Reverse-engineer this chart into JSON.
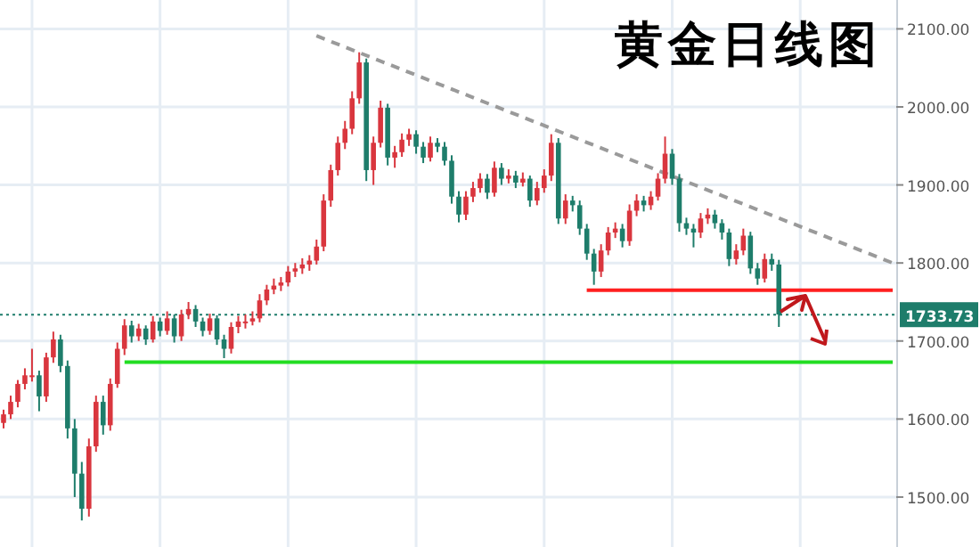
{
  "chart_data": {
    "type": "candlestick",
    "title": "黄金日线图",
    "categories": [
      null,
      null,
      null,
      null,
      null,
      null,
      null,
      null,
      null,
      null,
      null,
      null,
      null,
      null,
      null,
      null,
      null,
      null,
      null,
      null,
      null,
      null,
      null,
      null,
      null,
      null,
      null,
      null,
      null,
      null,
      null,
      null,
      null,
      null,
      null,
      null,
      null,
      null,
      null,
      null,
      null,
      null,
      null,
      null,
      null,
      null,
      null,
      null,
      null,
      null,
      null,
      null,
      null,
      null,
      null,
      null,
      null,
      null,
      null,
      null,
      null,
      null,
      null,
      null,
      null,
      null,
      null,
      null,
      null,
      null,
      null,
      null,
      null,
      null,
      null,
      null,
      null,
      null,
      null,
      null,
      null,
      null,
      null,
      null,
      null,
      null,
      null,
      null,
      null,
      null,
      null,
      null,
      null,
      null,
      null,
      null,
      null,
      null,
      null,
      null,
      null,
      null,
      null,
      null,
      null,
      null,
      null,
      null,
      null,
      null,
      null,
      null,
      null,
      null,
      null,
      null,
      null,
      null,
      null,
      null,
      null,
      null,
      null,
      null,
      null,
      null
    ],
    "ohlc": [
      [
        1595,
        1612,
        1588,
        1606
      ],
      [
        1606,
        1630,
        1600,
        1622
      ],
      [
        1622,
        1650,
        1615,
        1645
      ],
      [
        1645,
        1665,
        1638,
        1656
      ],
      [
        1656,
        1690,
        1648,
        1656
      ],
      [
        1656,
        1662,
        1610,
        1629
      ],
      [
        1629,
        1685,
        1622,
        1679
      ],
      [
        1679,
        1712,
        1672,
        1702
      ],
      [
        1702,
        1708,
        1660,
        1668
      ],
      [
        1668,
        1675,
        1575,
        1588
      ],
      [
        1588,
        1600,
        1500,
        1530
      ],
      [
        1530,
        1545,
        1470,
        1485
      ],
      [
        1485,
        1575,
        1475,
        1565
      ],
      [
        1565,
        1630,
        1558,
        1622
      ],
      [
        1622,
        1630,
        1580,
        1592
      ],
      [
        1592,
        1652,
        1585,
        1645
      ],
      [
        1645,
        1698,
        1640,
        1690
      ],
      [
        1690,
        1728,
        1682,
        1720
      ],
      [
        1720,
        1726,
        1698,
        1706
      ],
      [
        1706,
        1722,
        1700,
        1716
      ],
      [
        1716,
        1720,
        1695,
        1702
      ],
      [
        1702,
        1732,
        1698,
        1725
      ],
      [
        1725,
        1730,
        1706,
        1713
      ],
      [
        1713,
        1738,
        1708,
        1729
      ],
      [
        1729,
        1734,
        1698,
        1706
      ],
      [
        1706,
        1740,
        1700,
        1734
      ],
      [
        1734,
        1750,
        1728,
        1741
      ],
      [
        1741,
        1746,
        1718,
        1725
      ],
      [
        1725,
        1730,
        1706,
        1713
      ],
      [
        1713,
        1735,
        1708,
        1729
      ],
      [
        1729,
        1733,
        1695,
        1702
      ],
      [
        1702,
        1708,
        1678,
        1690
      ],
      [
        1690,
        1724,
        1684,
        1718
      ],
      [
        1718,
        1732,
        1710,
        1725
      ],
      [
        1725,
        1734,
        1716,
        1725
      ],
      [
        1725,
        1738,
        1720,
        1729
      ],
      [
        1729,
        1760,
        1724,
        1752
      ],
      [
        1752,
        1772,
        1746,
        1766
      ],
      [
        1766,
        1780,
        1760,
        1771
      ],
      [
        1771,
        1782,
        1764,
        1775
      ],
      [
        1775,
        1796,
        1770,
        1789
      ],
      [
        1789,
        1800,
        1782,
        1793
      ],
      [
        1793,
        1806,
        1786,
        1798
      ],
      [
        1798,
        1810,
        1790,
        1803
      ],
      [
        1803,
        1830,
        1798,
        1821
      ],
      [
        1821,
        1888,
        1815,
        1880
      ],
      [
        1880,
        1926,
        1872,
        1919
      ],
      [
        1919,
        1962,
        1912,
        1954
      ],
      [
        1954,
        1982,
        1946,
        1972
      ],
      [
        1972,
        2020,
        1965,
        2011
      ],
      [
        2011,
        2070,
        2004,
        2057
      ],
      [
        2057,
        2062,
        1905,
        1919
      ],
      [
        1919,
        1962,
        1900,
        1954
      ],
      [
        1954,
        2008,
        1948,
        1999
      ],
      [
        1999,
        2004,
        1925,
        1935
      ],
      [
        1935,
        1950,
        1922,
        1942
      ],
      [
        1942,
        1966,
        1936,
        1958
      ],
      [
        1958,
        1972,
        1950,
        1965
      ],
      [
        1965,
        1970,
        1940,
        1949
      ],
      [
        1949,
        1955,
        1928,
        1935
      ],
      [
        1935,
        1962,
        1930,
        1954
      ],
      [
        1954,
        1960,
        1942,
        1949
      ],
      [
        1949,
        1955,
        1925,
        1931
      ],
      [
        1931,
        1938,
        1876,
        1885
      ],
      [
        1885,
        1892,
        1852,
        1862
      ],
      [
        1862,
        1892,
        1855,
        1885
      ],
      [
        1885,
        1904,
        1878,
        1896
      ],
      [
        1896,
        1915,
        1890,
        1908
      ],
      [
        1908,
        1914,
        1882,
        1890
      ],
      [
        1890,
        1930,
        1885,
        1922
      ],
      [
        1922,
        1928,
        1900,
        1908
      ],
      [
        1908,
        1920,
        1902,
        1912
      ],
      [
        1912,
        1918,
        1896,
        1903
      ],
      [
        1903,
        1916,
        1898,
        1908
      ],
      [
        1908,
        1912,
        1872,
        1880
      ],
      [
        1880,
        1904,
        1874,
        1896
      ],
      [
        1896,
        1920,
        1890,
        1912
      ],
      [
        1912,
        1965,
        1905,
        1954
      ],
      [
        1954,
        1960,
        1850,
        1857
      ],
      [
        1857,
        1888,
        1850,
        1880
      ],
      [
        1880,
        1886,
        1866,
        1874
      ],
      [
        1874,
        1880,
        1836,
        1844
      ],
      [
        1844,
        1850,
        1804,
        1812
      ],
      [
        1812,
        1818,
        1772,
        1789
      ],
      [
        1789,
        1824,
        1782,
        1816
      ],
      [
        1816,
        1846,
        1810,
        1839
      ],
      [
        1839,
        1852,
        1832,
        1844
      ],
      [
        1844,
        1850,
        1820,
        1828
      ],
      [
        1828,
        1875,
        1822,
        1867
      ],
      [
        1867,
        1888,
        1860,
        1880
      ],
      [
        1880,
        1886,
        1866,
        1874
      ],
      [
        1874,
        1892,
        1868,
        1885
      ],
      [
        1885,
        1915,
        1880,
        1908
      ],
      [
        1908,
        1962,
        1902,
        1940
      ],
      [
        1940,
        1946,
        1900,
        1908
      ],
      [
        1908,
        1914,
        1840,
        1851
      ],
      [
        1851,
        1858,
        1836,
        1844
      ],
      [
        1844,
        1850,
        1820,
        1839
      ],
      [
        1839,
        1864,
        1832,
        1857
      ],
      [
        1857,
        1870,
        1850,
        1862
      ],
      [
        1862,
        1868,
        1844,
        1851
      ],
      [
        1851,
        1856,
        1830,
        1839
      ],
      [
        1839,
        1844,
        1796,
        1805
      ],
      [
        1805,
        1824,
        1798,
        1816
      ],
      [
        1816,
        1844,
        1810,
        1835
      ],
      [
        1835,
        1840,
        1786,
        1793
      ],
      [
        1793,
        1800,
        1772,
        1780
      ],
      [
        1780,
        1812,
        1775,
        1805
      ],
      [
        1805,
        1812,
        1790,
        1798
      ],
      [
        1798,
        1804,
        1718,
        1734
      ],
      null,
      null,
      null,
      null,
      null,
      null,
      null,
      null,
      null,
      null,
      null,
      null,
      null,
      null,
      null,
      null
    ],
    "colors": [
      "#d9363e",
      "#d9363e",
      "#d9363e",
      "#d9363e",
      "#d9363e",
      "#1e7d6b",
      "#d9363e",
      "#d9363e",
      "#1e7d6b",
      "#1e7d6b",
      "#1e7d6b",
      "#1e7d6b",
      "#d9363e",
      "#d9363e",
      "#1e7d6b",
      "#d9363e",
      "#d9363e",
      "#d9363e",
      "#1e7d6b",
      "#d9363e",
      "#1e7d6b",
      "#d9363e",
      "#1e7d6b",
      "#d9363e",
      "#1e7d6b",
      "#d9363e",
      "#d9363e",
      "#1e7d6b",
      "#1e7d6b",
      "#d9363e",
      "#1e7d6b",
      "#1e7d6b",
      "#d9363e",
      "#d9363e",
      "#d9363e",
      "#d9363e",
      "#d9363e",
      "#d9363e",
      "#d9363e",
      "#d9363e",
      "#d9363e",
      "#d9363e",
      "#d9363e",
      "#d9363e",
      "#d9363e",
      "#d9363e",
      "#d9363e",
      "#d9363e",
      "#d9363e",
      "#d9363e",
      "#d9363e",
      "#1e7d6b",
      "#d9363e",
      "#d9363e",
      "#1e7d6b",
      "#d9363e",
      "#d9363e",
      "#d9363e",
      "#1e7d6b",
      "#1e7d6b",
      "#d9363e",
      "#1e7d6b",
      "#1e7d6b",
      "#1e7d6b",
      "#1e7d6b",
      "#d9363e",
      "#d9363e",
      "#d9363e",
      "#1e7d6b",
      "#d9363e",
      "#1e7d6b",
      "#d9363e",
      "#1e7d6b",
      "#d9363e",
      "#1e7d6b",
      "#d9363e",
      "#d9363e",
      "#d9363e",
      "#1e7d6b",
      "#d9363e",
      "#1e7d6b",
      "#1e7d6b",
      "#1e7d6b",
      "#1e7d6b",
      "#d9363e",
      "#d9363e",
      "#d9363e",
      "#1e7d6b",
      "#d9363e",
      "#d9363e",
      "#1e7d6b",
      "#d9363e",
      "#d9363e",
      "#d9363e",
      "#1e7d6b",
      "#1e7d6b",
      "#1e7d6b",
      "#1e7d6b",
      "#d9363e",
      "#d9363e",
      "#1e7d6b",
      "#1e7d6b",
      "#1e7d6b",
      "#d9363e",
      "#d9363e",
      "#1e7d6b",
      "#1e7d6b",
      "#d9363e",
      "#1e7d6b",
      "#1e7d6b",
      null,
      null,
      null,
      null,
      null,
      null,
      null,
      null,
      null,
      null,
      null,
      null,
      null,
      null,
      null,
      null
    ],
    "series": [
      {
        "type": "line",
        "color": "#9a9a9a",
        "line_style": "dashed",
        "values": [
          null,
          null,
          null,
          null,
          null,
          null,
          null,
          null,
          null,
          null,
          null,
          null,
          null,
          null,
          null,
          null,
          null,
          null,
          null,
          null,
          null,
          null,
          null,
          null,
          null,
          null,
          null,
          null,
          null,
          null,
          null,
          null,
          null,
          null,
          null,
          null,
          null,
          null,
          null,
          null,
          null,
          null,
          null,
          null,
          2091,
          null,
          null,
          null,
          null,
          null,
          null,
          null,
          null,
          null,
          null,
          null,
          null,
          null,
          null,
          null,
          null,
          null,
          null,
          null,
          null,
          null,
          null,
          null,
          null,
          null,
          null,
          null,
          null,
          null,
          null,
          null,
          null,
          null,
          null,
          null,
          null,
          null,
          null,
          null,
          null,
          null,
          null,
          null,
          null,
          null,
          null,
          null,
          null,
          null,
          null,
          null,
          null,
          null,
          null,
          null,
          null,
          null,
          null,
          null,
          null,
          null,
          null,
          null,
          null,
          null,
          null,
          null,
          null,
          null,
          null,
          null,
          null,
          null,
          null,
          null,
          null,
          null,
          null,
          null,
          null,
          1800
        ]
      },
      {
        "type": "line",
        "color": "#ff2020",
        "line_style": "solid",
        "values": [
          null,
          null,
          null,
          null,
          null,
          null,
          null,
          null,
          null,
          null,
          null,
          null,
          null,
          null,
          null,
          null,
          null,
          null,
          null,
          null,
          null,
          null,
          null,
          null,
          null,
          null,
          null,
          null,
          null,
          null,
          null,
          null,
          null,
          null,
          null,
          null,
          null,
          null,
          null,
          null,
          null,
          null,
          null,
          null,
          null,
          null,
          null,
          null,
          null,
          null,
          null,
          null,
          null,
          null,
          null,
          null,
          null,
          null,
          null,
          null,
          null,
          null,
          null,
          null,
          null,
          null,
          null,
          null,
          null,
          null,
          null,
          null,
          null,
          null,
          null,
          null,
          null,
          null,
          null,
          null,
          null,
          null,
          1765,
          null,
          null,
          null,
          null,
          null,
          null,
          null,
          null,
          null,
          null,
          null,
          null,
          null,
          null,
          null,
          null,
          null,
          null,
          null,
          null,
          null,
          null,
          null,
          null,
          null,
          null,
          null,
          null,
          null,
          null,
          null,
          null,
          null,
          null,
          null,
          null,
          null,
          null,
          null,
          null,
          null,
          null,
          1765
        ]
      },
      {
        "type": "line",
        "color": "#22dd22",
        "line_style": "solid",
        "values": [
          null,
          null,
          null,
          null,
          null,
          null,
          null,
          null,
          null,
          null,
          null,
          null,
          null,
          null,
          null,
          null,
          null,
          1673,
          null,
          null,
          null,
          null,
          null,
          null,
          null,
          null,
          null,
          null,
          null,
          null,
          null,
          null,
          null,
          null,
          null,
          null,
          null,
          null,
          null,
          null,
          null,
          null,
          null,
          null,
          null,
          null,
          null,
          null,
          null,
          null,
          null,
          null,
          null,
          null,
          null,
          null,
          null,
          null,
          null,
          null,
          null,
          null,
          null,
          null,
          null,
          null,
          null,
          null,
          null,
          null,
          null,
          null,
          null,
          null,
          null,
          null,
          null,
          null,
          null,
          null,
          null,
          null,
          null,
          null,
          null,
          null,
          null,
          null,
          null,
          null,
          null,
          null,
          null,
          null,
          null,
          null,
          null,
          null,
          null,
          null,
          null,
          null,
          null,
          null,
          null,
          null,
          null,
          null,
          null,
          null,
          null,
          null,
          null,
          null,
          null,
          null,
          null,
          null,
          null,
          null,
          null,
          null,
          null,
          null,
          null,
          1673
        ]
      }
    ],
    "ref_lines": [
      {
        "axis": "y",
        "value": 1733.73,
        "label": "1733.73",
        "color": "#1e7d6b",
        "line_style": "dotted"
      }
    ],
    "ylim": [
      1436,
      2137
    ],
    "yticks": [
      {
        "value": 1500,
        "label": "1500.00"
      },
      {
        "value": 1600,
        "label": "1600.00"
      },
      {
        "value": 1700,
        "label": "1700.00"
      },
      {
        "value": 1800,
        "label": "1800.00"
      },
      {
        "value": 1900,
        "label": "1900.00"
      },
      {
        "value": 2000,
        "label": "2000.00"
      },
      {
        "value": 2100,
        "label": "2100.00"
      }
    ],
    "grid": true,
    "tick_labels": "y"
  }
}
